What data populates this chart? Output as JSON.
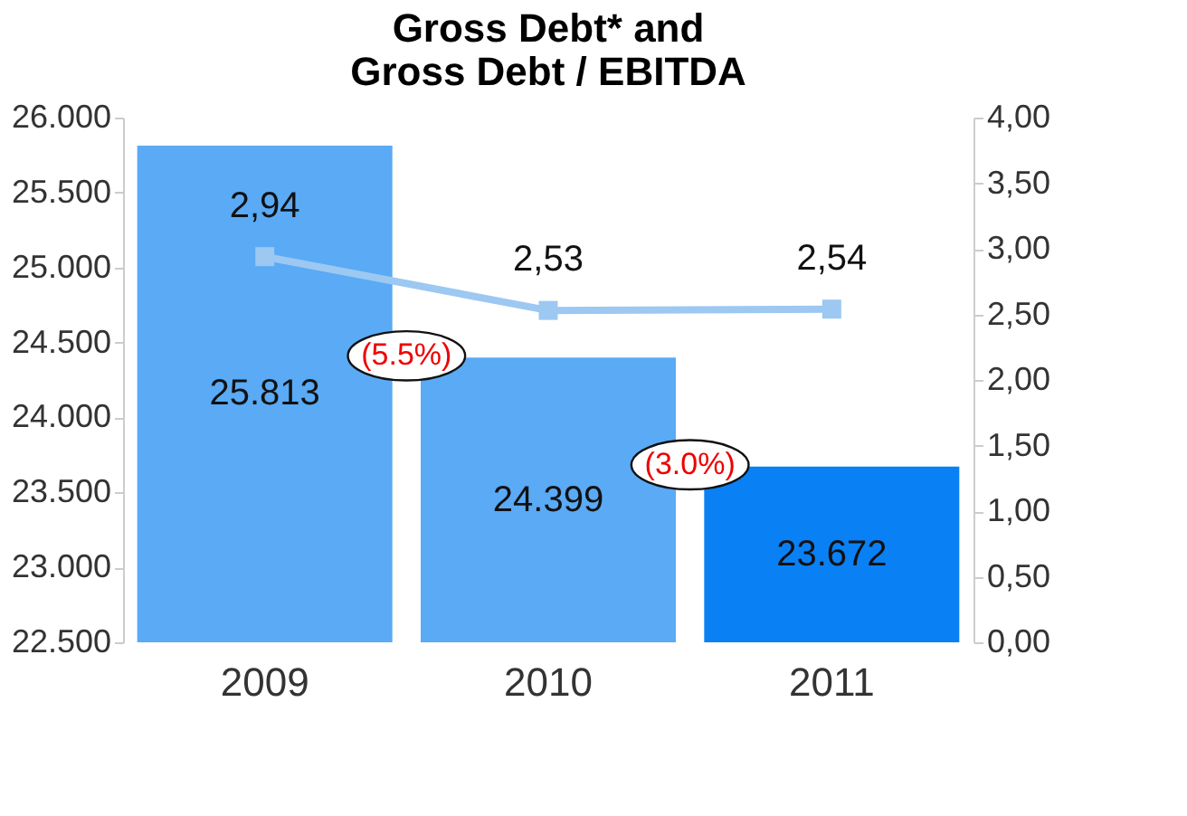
{
  "chart_data": {
    "type": "bar",
    "title": [
      "Gross Debt* and",
      "Gross Debt / EBITDA"
    ],
    "categories": [
      "2009",
      "2010",
      "2011"
    ],
    "series": [
      {
        "colors": [
          "#5aaaf5",
          "#5aaaf5",
          "#0a80f5"
        ],
        "values": [
          25813,
          24399,
          23672
        ],
        "value_labels": [
          "25.813",
          "24.399",
          "23.672"
        ]
      },
      {
        "type": "line",
        "axis": "y2",
        "color": "#9cc8f2",
        "marker": "square",
        "line_style": "solid",
        "values": [
          2.94,
          2.53,
          2.54
        ],
        "value_labels": [
          "2,94",
          "2,53",
          "2,54"
        ]
      }
    ],
    "ylim": [
      22500,
      26000
    ],
    "yticks": [
      {
        "value": 22500,
        "label": "22.500"
      },
      {
        "value": 23000,
        "label": "23.000"
      },
      {
        "value": 23500,
        "label": "23.500"
      },
      {
        "value": 24000,
        "label": "24.000"
      },
      {
        "value": 24500,
        "label": "24.500"
      },
      {
        "value": 25000,
        "label": "25.000"
      },
      {
        "value": 25500,
        "label": "25.500"
      },
      {
        "value": 26000,
        "label": "26.000"
      }
    ],
    "y2lim": [
      0,
      4
    ],
    "y2ticks": [
      {
        "value": 0,
        "label": "0,00"
      },
      {
        "value": 0.5,
        "label": "0,50"
      },
      {
        "value": 1,
        "label": "1,00"
      },
      {
        "value": 1.5,
        "label": "1,50"
      },
      {
        "value": 2,
        "label": "2,00"
      },
      {
        "value": 2.5,
        "label": "2,50"
      },
      {
        "value": 3,
        "label": "3,00"
      },
      {
        "value": 3.5,
        "label": "3,50"
      },
      {
        "value": 4,
        "label": "4,00"
      }
    ],
    "annotations": [
      "(5.5%)",
      "(3.0%)"
    ],
    "grid": false
  }
}
